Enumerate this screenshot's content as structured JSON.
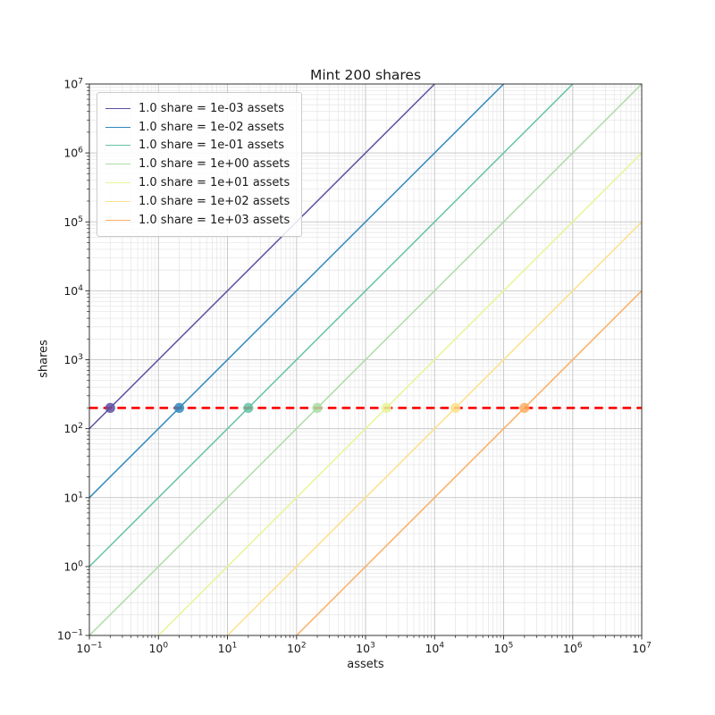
{
  "colors": {
    "background": "#ffffff",
    "text": "#1a1a1a",
    "spine": "#333333",
    "grid_major": "#c9c9c9",
    "grid_minor": "#e8e8e8",
    "reference_red": "#ff0000"
  },
  "chart_data": {
    "type": "line",
    "title": "Mint 200 shares",
    "xlabel": "assets",
    "ylabel": "shares",
    "x_scale": "log",
    "y_scale": "log",
    "xlim": [
      0.1,
      10000000
    ],
    "ylim": [
      0.1,
      10000000
    ],
    "x_tick_labels": [
      "10^-1",
      "10^0",
      "10^1",
      "10^2",
      "10^3",
      "10^4",
      "10^5",
      "10^6",
      "10^7"
    ],
    "y_tick_labels": [
      "10^-1",
      "10^0",
      "10^1",
      "10^2",
      "10^3",
      "10^4",
      "10^5",
      "10^6",
      "10^7"
    ],
    "grid": {
      "major": true,
      "minor": true
    },
    "legend_position": "upper-left",
    "series": [
      {
        "label": "1.0 share = 1e-03 assets",
        "assets_per_share": 0.001,
        "rate_exponent": -3,
        "color": "#5e4fa2",
        "marker": {
          "assets": 0.2,
          "shares": 200
        }
      },
      {
        "label": "1.0 share = 1e-02 assets",
        "assets_per_share": 0.01,
        "rate_exponent": -2,
        "color": "#3288bd",
        "marker": {
          "assets": 2,
          "shares": 200
        }
      },
      {
        "label": "1.0 share = 1e-01 assets",
        "assets_per_share": 0.1,
        "rate_exponent": -1,
        "color": "#66c2a5",
        "marker": {
          "assets": 20,
          "shares": 200
        }
      },
      {
        "label": "1.0 share = 1e+00 assets",
        "assets_per_share": 1,
        "rate_exponent": 0,
        "color": "#abdda4",
        "marker": {
          "assets": 200,
          "shares": 200
        }
      },
      {
        "label": "1.0 share = 1e+01 assets",
        "assets_per_share": 10,
        "rate_exponent": 1,
        "color": "#e6f598",
        "marker": {
          "assets": 2000,
          "shares": 200
        }
      },
      {
        "label": "1.0 share = 1e+02 assets",
        "assets_per_share": 100,
        "rate_exponent": 2,
        "color": "#fee08b",
        "marker": {
          "assets": 20000,
          "shares": 200
        }
      },
      {
        "label": "1.0 share = 1e+03 assets",
        "assets_per_share": 1000,
        "rate_exponent": 3,
        "color": "#fdae61",
        "marker": {
          "assets": 200000,
          "shares": 200
        }
      }
    ],
    "reference_line": {
      "shares": 200,
      "color": "#ff0000",
      "style": "dashed"
    }
  }
}
